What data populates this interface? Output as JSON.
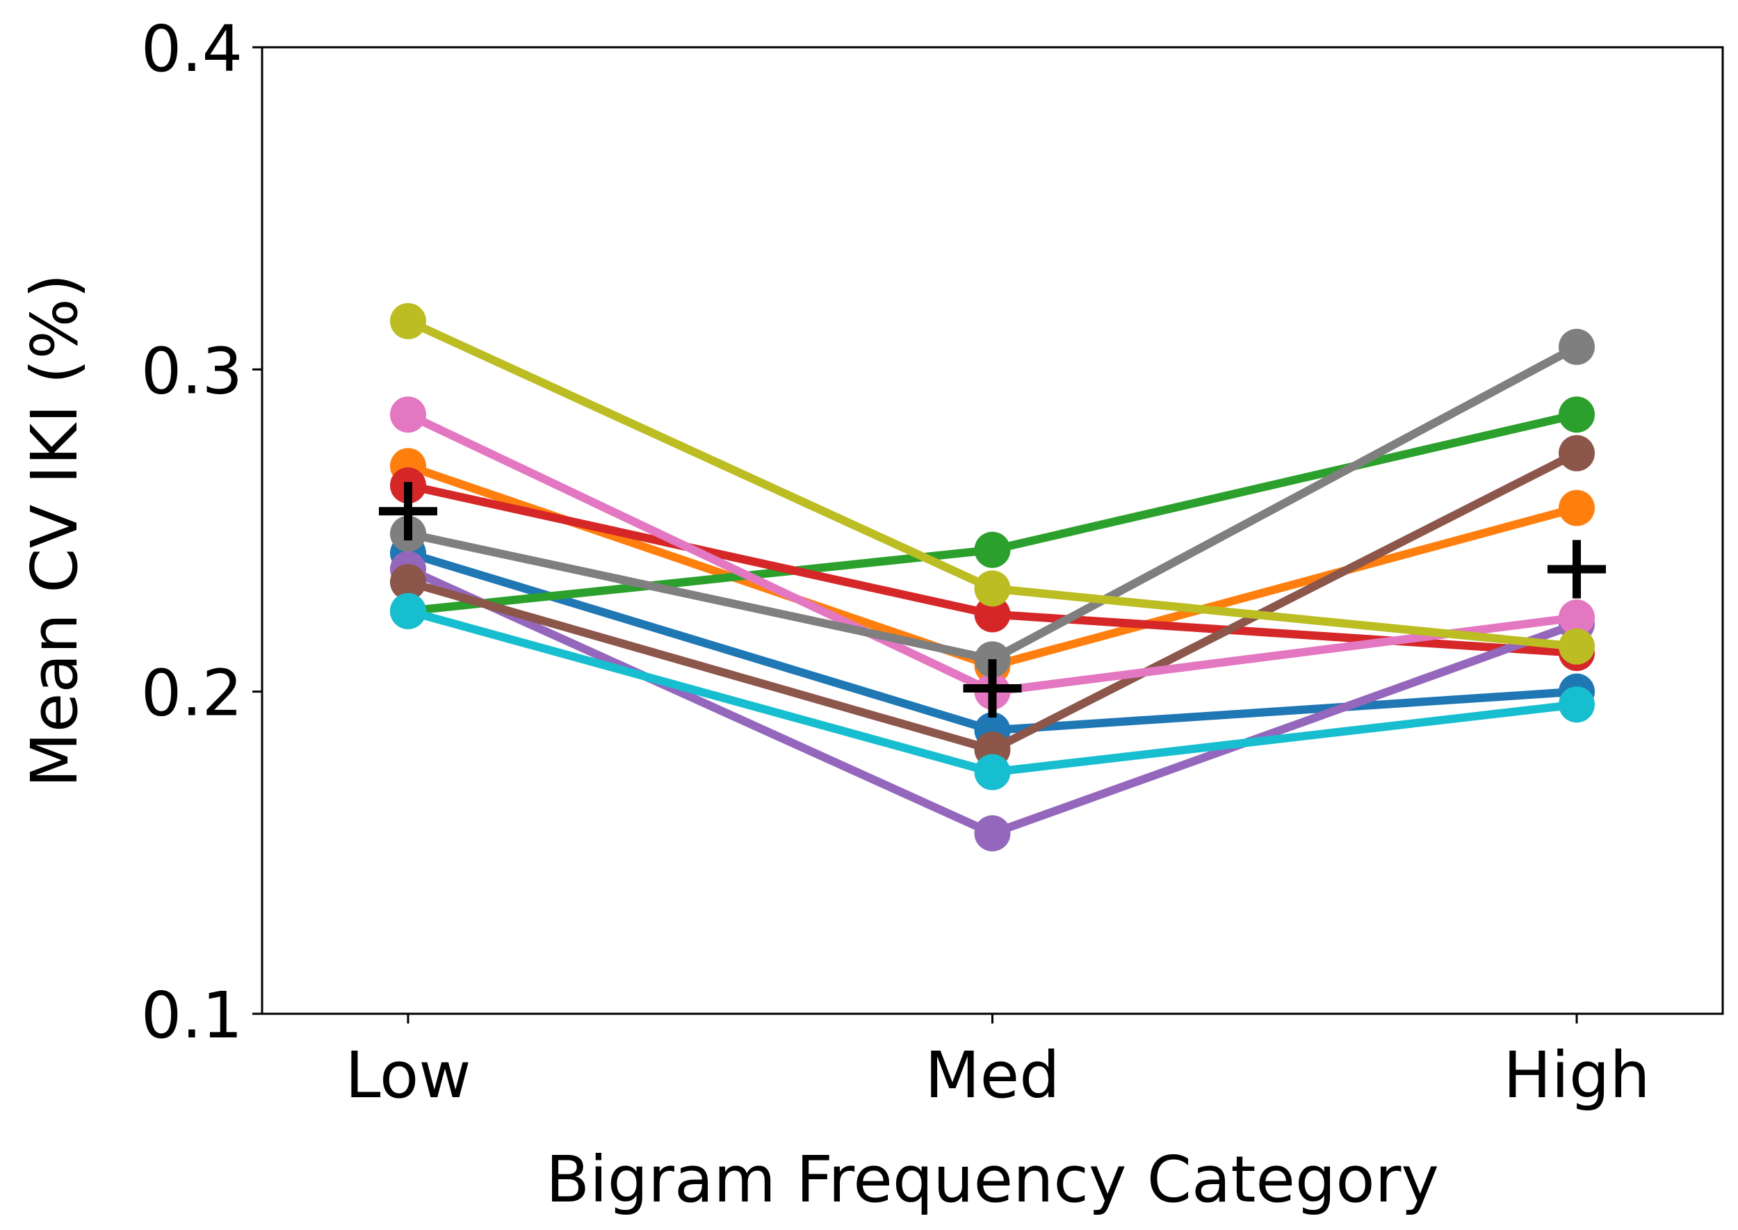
{
  "chart_data": {
    "type": "line",
    "title": "",
    "xlabel": "Bigram Frequency Category",
    "ylabel": "Mean CV IKI (%)",
    "categories": [
      "Low",
      "Med",
      "High"
    ],
    "ylim": [
      0.1,
      0.4
    ],
    "yticks": [
      0.1,
      0.2,
      0.3,
      0.4
    ],
    "ytick_labels": [
      "0.1",
      "0.2",
      "0.3",
      "0.4"
    ],
    "grid": false,
    "legend": "none",
    "series": [
      {
        "color": "#1f77b4",
        "values": [
          0.243,
          0.188,
          0.2
        ]
      },
      {
        "color": "#ff7f0e",
        "values": [
          0.27,
          0.208,
          0.257
        ]
      },
      {
        "color": "#2ca02c",
        "values": [
          0.225,
          0.244,
          0.286
        ]
      },
      {
        "color": "#d62728",
        "values": [
          0.264,
          0.224,
          0.212
        ]
      },
      {
        "color": "#9467bd",
        "values": [
          0.238,
          0.156,
          0.221
        ]
      },
      {
        "color": "#8c564b",
        "values": [
          0.234,
          0.182,
          0.274
        ]
      },
      {
        "color": "#e377c2",
        "values": [
          0.286,
          0.2,
          0.223
        ]
      },
      {
        "color": "#7f7f7f",
        "values": [
          0.249,
          0.21,
          0.307
        ]
      },
      {
        "color": "#bcbd22",
        "values": [
          0.315,
          0.232,
          0.214
        ]
      },
      {
        "color": "#17becf",
        "values": [
          0.225,
          0.175,
          0.196
        ]
      }
    ],
    "mean_markers": {
      "marker": "plus",
      "color": "#000000",
      "values": [
        0.256,
        0.201,
        0.238
      ]
    }
  }
}
